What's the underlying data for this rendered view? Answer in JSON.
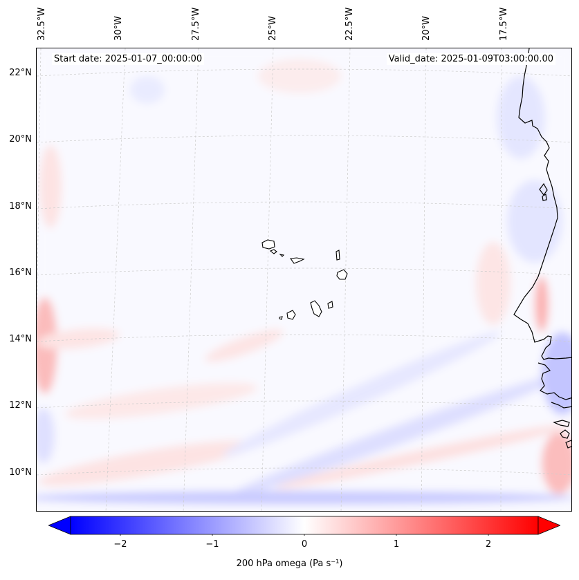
{
  "header": {
    "start_date": "Start date: 2025-01-07_00:00:00",
    "valid_date": "Valid_date: 2025-01-09T03:00:00.00"
  },
  "longitude_labels": [
    "32.5°W",
    "30°W",
    "27.5°W",
    "25°W",
    "22.5°W",
    "20°W",
    "17.5°W"
  ],
  "latitude_labels": [
    "22°N",
    "20°N",
    "18°N",
    "16°N",
    "14°N",
    "12°N",
    "10°N"
  ],
  "colorbar": {
    "label": "200 hPa omega (Pa s⁻¹)",
    "ticks": [
      "−2",
      "−1",
      "0",
      "1",
      "2"
    ],
    "range": [
      -2.5,
      2.5
    ],
    "low_color": "#0000ff",
    "mid_color": "#ffffff",
    "high_color": "#ff0000"
  },
  "map": {
    "variable": "200 hPa omega",
    "units": "Pa s-1",
    "extent_lon": [
      -33.0,
      -14.5
    ],
    "extent_lat": [
      8.9,
      22.8
    ],
    "coastline_color": "#000000",
    "gridline_color": "#cccccc"
  }
}
